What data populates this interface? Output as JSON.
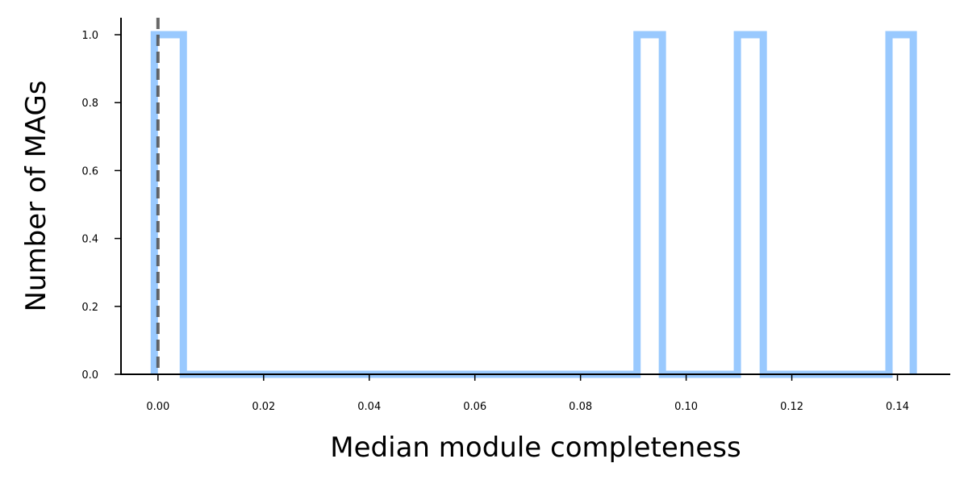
{
  "chart_data": {
    "type": "histogram-step",
    "xlabel": "Median module completeness",
    "ylabel": "Number of MAGs",
    "xlim": [
      -0.007,
      0.15
    ],
    "ylim": [
      0.0,
      1.05
    ],
    "x_ticks": [
      0.0,
      0.02,
      0.04,
      0.06,
      0.08,
      0.1,
      0.12,
      0.14
    ],
    "x_tick_labels": [
      "0.00",
      "0.02",
      "0.04",
      "0.06",
      "0.08",
      "0.10",
      "0.12",
      "0.14"
    ],
    "y_ticks": [
      0.0,
      0.2,
      0.4,
      0.6,
      0.8,
      1.0
    ],
    "y_tick_labels": [
      "0.0",
      "0.2",
      "0.4",
      "0.6",
      "0.8",
      "1.0"
    ],
    "series": [
      {
        "bins": [
          {
            "x0": -0.0007,
            "x1": 0.0048,
            "count": 1
          },
          {
            "x0": 0.0048,
            "x1": 0.0907,
            "count": 0
          },
          {
            "x0": 0.0907,
            "x1": 0.0955,
            "count": 1
          },
          {
            "x0": 0.0955,
            "x1": 0.1097,
            "count": 0
          },
          {
            "x0": 0.1097,
            "x1": 0.1146,
            "count": 1
          },
          {
            "x0": 0.1146,
            "x1": 0.1384,
            "count": 0
          },
          {
            "x0": 0.1384,
            "x1": 0.143,
            "count": 1
          }
        ],
        "color": "#99c9fe"
      }
    ],
    "reference_line": {
      "x": 0.0,
      "style": "dashed",
      "color": "#4d4d4d"
    },
    "grid": false,
    "legend": "none"
  }
}
